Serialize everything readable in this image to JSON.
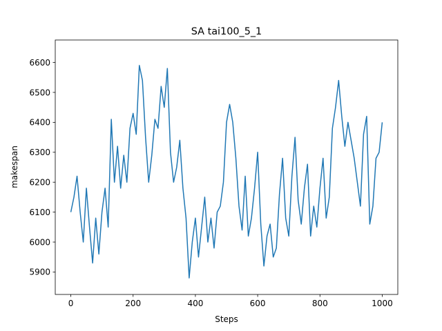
{
  "chart_data": {
    "type": "line",
    "title": "SA tai100_5_1",
    "xlabel": "Steps",
    "ylabel": "makespan",
    "xlim": [
      -50,
      1050
    ],
    "ylim": [
      5825,
      6675
    ],
    "xticks": [
      0,
      200,
      400,
      600,
      800,
      1000
    ],
    "yticks": [
      5900,
      6000,
      6100,
      6200,
      6300,
      6400,
      6500,
      6600
    ],
    "grid": false,
    "color": "#1f77b4",
    "series": [
      {
        "x": [
          0,
          10,
          20,
          30,
          40,
          50,
          60,
          70,
          80,
          90,
          100,
          110,
          120,
          130,
          140,
          150,
          160,
          170,
          180,
          190,
          200,
          210,
          220,
          230,
          240,
          250,
          260,
          270,
          280,
          290,
          300,
          310,
          320,
          330,
          340,
          350,
          360,
          370,
          380,
          390,
          400,
          410,
          420,
          430,
          440,
          450,
          460,
          470,
          480,
          490,
          500,
          510,
          520,
          530,
          540,
          550,
          560,
          570,
          580,
          590,
          600,
          610,
          620,
          630,
          640,
          650,
          660,
          670,
          680,
          690,
          700,
          710,
          720,
          730,
          740,
          750,
          760,
          770,
          780,
          790,
          800,
          810,
          820,
          830,
          840,
          850,
          860,
          870,
          880,
          890,
          900,
          910,
          920,
          930,
          940,
          950,
          960,
          970,
          980,
          990,
          1000
        ],
        "y": [
          6100,
          6150,
          6220,
          6100,
          6000,
          6180,
          6050,
          5930,
          6080,
          5960,
          6100,
          6180,
          6050,
          6410,
          6200,
          6320,
          6180,
          6290,
          6200,
          6380,
          6430,
          6360,
          6590,
          6540,
          6350,
          6200,
          6290,
          6410,
          6380,
          6520,
          6450,
          6580,
          6300,
          6200,
          6250,
          6340,
          6180,
          6080,
          5880,
          6000,
          6080,
          5950,
          6050,
          6150,
          6000,
          6080,
          5980,
          6100,
          6120,
          6200,
          6400,
          6460,
          6400,
          6280,
          6120,
          6040,
          6220,
          6020,
          6080,
          6180,
          6300,
          6060,
          5920,
          6020,
          6060,
          5950,
          5980,
          6160,
          6280,
          6080,
          6020,
          6220,
          6350,
          6140,
          6060,
          6180,
          6260,
          6020,
          6120,
          6050,
          6180,
          6280,
          6080,
          6150,
          6380,
          6450,
          6540,
          6420,
          6320,
          6400,
          6340,
          6280,
          6200,
          6120,
          6360,
          6420,
          6060,
          6120,
          6280,
          6300,
          6400
        ]
      }
    ]
  }
}
